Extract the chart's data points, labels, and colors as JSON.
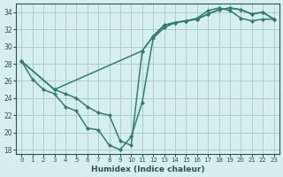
{
  "background_color": "#d6eeee",
  "grid_color": "#aacccc",
  "line_color": "#2e7d6e",
  "line1_x": [
    0,
    1,
    2,
    3,
    4,
    5,
    6,
    7,
    8,
    9,
    10,
    11,
    12,
    13,
    14,
    15,
    16,
    17,
    18,
    19,
    20,
    21,
    22,
    23
  ],
  "line1_y": [
    28.3,
    26.2,
    25.0,
    24.5,
    23.0,
    22.5,
    20.5,
    20.3,
    18.5,
    18.0,
    19.5,
    23.5,
    31.0,
    32.2,
    32.8,
    33.0,
    33.3,
    34.2,
    34.5,
    34.2,
    33.3,
    33.0,
    33.2,
    33.2
  ],
  "line2_x": [
    0,
    3,
    4,
    5,
    6,
    7,
    8,
    9,
    10,
    11,
    12,
    13,
    14,
    15,
    16,
    17,
    18,
    19,
    20,
    21,
    22,
    23
  ],
  "line2_y": [
    28.3,
    25.0,
    24.5,
    24.0,
    23.0,
    22.3,
    22.0,
    19.0,
    18.5,
    29.5,
    31.2,
    32.5,
    32.8,
    33.0,
    33.2,
    33.8,
    34.3,
    34.5,
    34.3,
    33.8,
    34.0,
    33.2
  ],
  "line3_x": [
    0,
    3,
    11,
    12,
    13,
    14,
    15,
    16,
    17,
    18,
    19,
    20,
    21,
    22,
    23
  ],
  "line3_y": [
    28.3,
    25.0,
    29.5,
    31.2,
    32.5,
    32.8,
    33.0,
    33.2,
    33.8,
    34.3,
    34.5,
    34.3,
    33.8,
    34.0,
    33.2
  ],
  "xlabel": "Humidex (Indice chaleur)",
  "xlim": [
    -0.5,
    23.5
  ],
  "ylim": [
    17.5,
    35.0
  ],
  "yticks": [
    18,
    20,
    22,
    24,
    26,
    28,
    30,
    32,
    34
  ],
  "xticks": [
    0,
    1,
    2,
    3,
    4,
    5,
    6,
    7,
    8,
    9,
    10,
    11,
    12,
    13,
    14,
    15,
    16,
    17,
    18,
    19,
    20,
    21,
    22,
    23
  ],
  "marker": "D",
  "markersize": 2.0,
  "linewidth": 1.1
}
